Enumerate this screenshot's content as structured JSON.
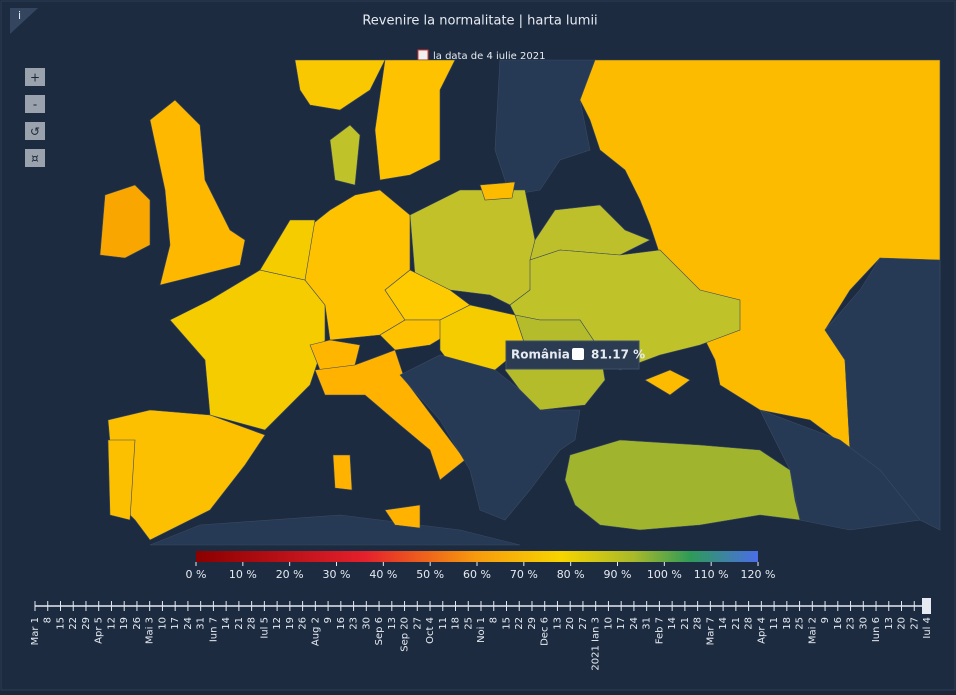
{
  "header": {
    "title": "Revenire la normalitate | harta lumii",
    "subtitle": "la data de 4 iulie 2021",
    "info": "i"
  },
  "controls": [
    "+",
    "-",
    "↺",
    "¤"
  ],
  "tooltip": {
    "country": "România",
    "value": "81.17 %"
  },
  "legend": {
    "range": [
      0,
      120
    ],
    "ticks": [
      {
        "value": 0,
        "label": "0 %"
      },
      {
        "value": 10,
        "label": "10 %"
      },
      {
        "value": 20,
        "label": "20 %"
      },
      {
        "value": 30,
        "label": "30 %"
      },
      {
        "value": 40,
        "label": "40 %"
      },
      {
        "value": 50,
        "label": "50 %"
      },
      {
        "value": 60,
        "label": "60 %"
      },
      {
        "value": 70,
        "label": "70 %"
      },
      {
        "value": 80,
        "label": "80 %"
      },
      {
        "value": 90,
        "label": "90 %"
      },
      {
        "value": 100,
        "label": "100 %"
      },
      {
        "value": 110,
        "label": "110 %"
      },
      {
        "value": 120,
        "label": "120 %"
      }
    ]
  },
  "timeline": {
    "labels": [
      "Mar 1",
      "8",
      "15",
      "22",
      "29",
      "Apr 5",
      "12",
      "19",
      "26",
      "Mai 3",
      "10",
      "17",
      "24",
      "31",
      "Iun 7",
      "14",
      "21",
      "28",
      "Iul 5",
      "12",
      "19",
      "26",
      "Aug 2",
      "9",
      "16",
      "23",
      "30",
      "Sep 6",
      "13",
      "Sep 20",
      "27",
      "Oct 4",
      "11",
      "18",
      "25",
      "Noi 1",
      "8",
      "15",
      "22",
      "29",
      "Dec 6",
      "13",
      "20",
      "27",
      "2021 Ian 3",
      "10",
      "17",
      "24",
      "31",
      "Feb 7",
      "14",
      "21",
      "28",
      "Mar 7",
      "14",
      "21",
      "28",
      "Apr 4",
      "11",
      "18",
      "25",
      "Mai 2",
      "9",
      "16",
      "23",
      "30",
      "Iun 6",
      "13",
      "20",
      "27",
      "Iul 4"
    ]
  }
}
